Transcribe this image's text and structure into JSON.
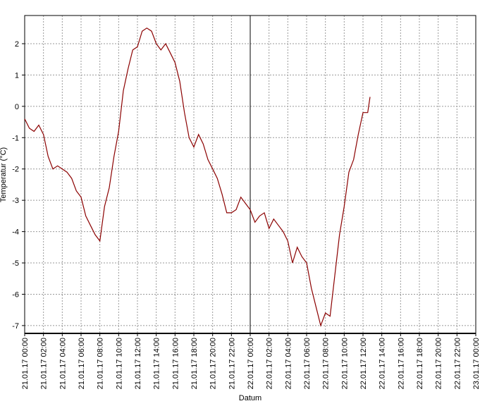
{
  "chart_data": {
    "type": "line",
    "x_label": "Datum",
    "y_label": "Temperatur (°C)",
    "x": [
      "21.01.17 00:00",
      "21.01.17 00:30",
      "21.01.17 01:00",
      "21.01.17 01:30",
      "21.01.17 02:00",
      "21.01.17 02:30",
      "21.01.17 03:00",
      "21.01.17 03:30",
      "21.01.17 04:00",
      "21.01.17 04:30",
      "21.01.17 05:00",
      "21.01.17 05:30",
      "21.01.17 06:00",
      "21.01.17 06:30",
      "21.01.17 07:00",
      "21.01.17 07:30",
      "21.01.17 08:00",
      "21.01.17 08:30",
      "21.01.17 09:00",
      "21.01.17 09:30",
      "21.01.17 10:00",
      "21.01.17 10:30",
      "21.01.17 11:00",
      "21.01.17 11:30",
      "21.01.17 12:00",
      "21.01.17 12:30",
      "21.01.17 13:00",
      "21.01.17 13:30",
      "21.01.17 14:00",
      "21.01.17 14:30",
      "21.01.17 15:00",
      "21.01.17 15:30",
      "21.01.17 16:00",
      "21.01.17 16:30",
      "21.01.17 17:00",
      "21.01.17 17:30",
      "21.01.17 18:00",
      "21.01.17 18:30",
      "21.01.17 19:00",
      "21.01.17 19:30",
      "21.01.17 20:00",
      "21.01.17 20:30",
      "21.01.17 21:00",
      "21.01.17 21:30",
      "21.01.17 22:00",
      "21.01.17 22:30",
      "21.01.17 23:00",
      "21.01.17 23:30",
      "22.01.17 00:00",
      "22.01.17 00:30",
      "22.01.17 01:00",
      "22.01.17 01:30",
      "22.01.17 02:00",
      "22.01.17 02:30",
      "22.01.17 03:00",
      "22.01.17 03:30",
      "22.01.17 04:00",
      "22.01.17 04:30",
      "22.01.17 05:00",
      "22.01.17 05:30",
      "22.01.17 06:00",
      "22.01.17 06:30",
      "22.01.17 07:00",
      "22.01.17 07:30",
      "22.01.17 08:00",
      "22.01.17 08:30",
      "22.01.17 09:00",
      "22.01.17 09:30",
      "22.01.17 10:00",
      "22.01.17 10:30",
      "22.01.17 11:00",
      "22.01.17 11:30",
      "22.01.17 12:00",
      "22.01.17 12:30",
      "22.01.17 12:45"
    ],
    "series": [
      {
        "name": "Temperatur",
        "color": "#8b0000",
        "values": [
          -0.4,
          -0.7,
          -0.8,
          -0.6,
          -0.9,
          -1.6,
          -2.0,
          -1.9,
          -2.0,
          -2.1,
          -2.3,
          -2.7,
          -2.9,
          -3.5,
          -3.8,
          -4.1,
          -4.3,
          -3.2,
          -2.6,
          -1.6,
          -0.8,
          0.5,
          1.2,
          1.8,
          1.9,
          2.4,
          2.5,
          2.4,
          2.0,
          1.8,
          2.0,
          1.7,
          1.4,
          0.8,
          -0.2,
          -1.0,
          -1.3,
          -0.9,
          -1.2,
          -1.7,
          -2.0,
          -2.3,
          -2.8,
          -3.4,
          -3.4,
          -3.3,
          -2.9,
          -3.1,
          -3.3,
          -3.7,
          -3.5,
          -3.4,
          -3.9,
          -3.6,
          -3.8,
          -4.0,
          -4.3,
          -5.0,
          -4.5,
          -4.8,
          -5.0,
          -5.8,
          -6.4,
          -7.0,
          -6.6,
          -6.7,
          -5.4,
          -4.1,
          -3.2,
          -2.1,
          -1.7,
          -0.9,
          -0.2,
          -0.2,
          0.3
        ]
      }
    ],
    "xlim": [
      "21.01.17 00:00",
      "23.01.17 00:00"
    ],
    "xticks": [
      "21.01.17 00:00",
      "21.01.17 02:00",
      "21.01.17 04:00",
      "21.01.17 06:00",
      "21.01.17 08:00",
      "21.01.17 10:00",
      "21.01.17 12:00",
      "21.01.17 14:00",
      "21.01.17 16:00",
      "21.01.17 18:00",
      "21.01.17 20:00",
      "21.01.17 22:00",
      "22.01.17 00:00",
      "22.01.17 02:00",
      "22.01.17 04:00",
      "22.01.17 06:00",
      "22.01.17 08:00",
      "22.01.17 10:00",
      "22.01.17 12:00",
      "22.01.17 14:00",
      "22.01.17 16:00",
      "22.01.17 18:00",
      "22.01.17 20:00",
      "22.01.17 22:00",
      "23.01.17 00:00"
    ],
    "ylim": [
      -7.25,
      2.9
    ],
    "yticks": [
      2,
      1,
      0,
      -1,
      -2,
      -3,
      -4,
      -5,
      -6,
      -7
    ],
    "grid": true
  }
}
